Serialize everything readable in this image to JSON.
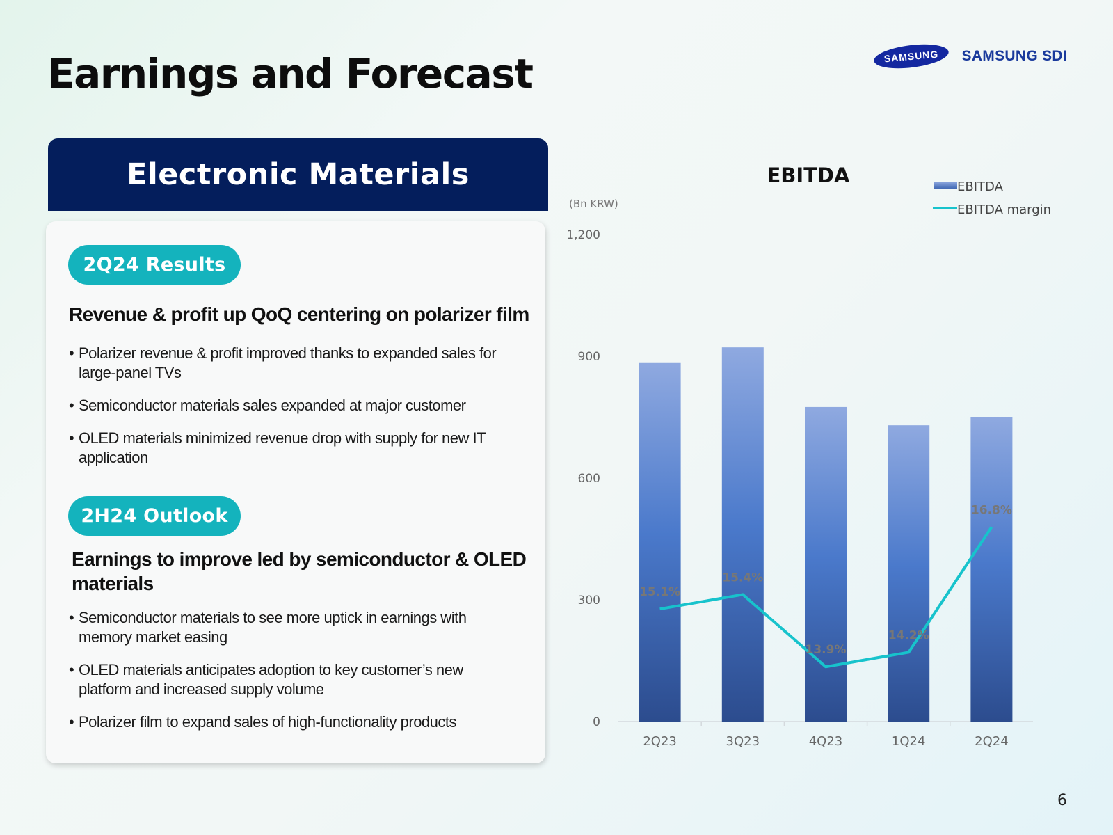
{
  "slide": {
    "title": "Earnings and Forecast",
    "page_number": "6"
  },
  "brand": {
    "samsung": "SAMSUNG",
    "sdi": "SAMSUNG SDI",
    "color": "#1428a0"
  },
  "panel": {
    "header": "Electronic Materials",
    "results": {
      "pill": "2Q24 Results",
      "headline": "Revenue & profit up QoQ centering on polarizer film",
      "bullets": [
        "Polarizer revenue & profit improved thanks to expanded sales for large-panel TVs",
        "Semiconductor materials sales expanded at major customer",
        "OLED materials minimized revenue drop with supply for new IT application"
      ]
    },
    "outlook": {
      "pill": "2H24 Outlook",
      "headline": "Earnings to improve led by semiconductor & OLED materials",
      "bullets": [
        "Semiconductor materials to see more uptick in earnings with memory market easing",
        "OLED materials anticipates adoption to key customer’s new platform and increased supply volume",
        "Polarizer film to expand sales of high-functionality products"
      ]
    }
  },
  "colors": {
    "navy": "#041e5c",
    "teal": "#14b3bd",
    "bar_top": "#8fa9e0",
    "bar_mid": "#4a79cb",
    "bar_bottom": "#2c4c8e",
    "line": "#17c3cc"
  },
  "chart_data": {
    "type": "bar",
    "title": "EBITDA",
    "unit_label": "(Bn KRW)",
    "categories": [
      "2Q23",
      "3Q23",
      "4Q23",
      "1Q24",
      "2Q24"
    ],
    "ylim": [
      0,
      1200
    ],
    "yticks": [
      "0",
      "300",
      "600",
      "900",
      "1,200"
    ],
    "grid": false,
    "legend_position": "top-right",
    "series": [
      {
        "name": "EBITDA",
        "type": "bar",
        "values": [
          885,
          922,
          775,
          730,
          750
        ]
      },
      {
        "name": "EBITDA margin",
        "type": "line",
        "values": [
          15.1,
          15.4,
          13.9,
          14.2,
          16.8
        ],
        "labels": [
          "15.1%",
          "15.4%",
          "13.9%",
          "14.2%",
          "16.8%"
        ]
      }
    ]
  }
}
